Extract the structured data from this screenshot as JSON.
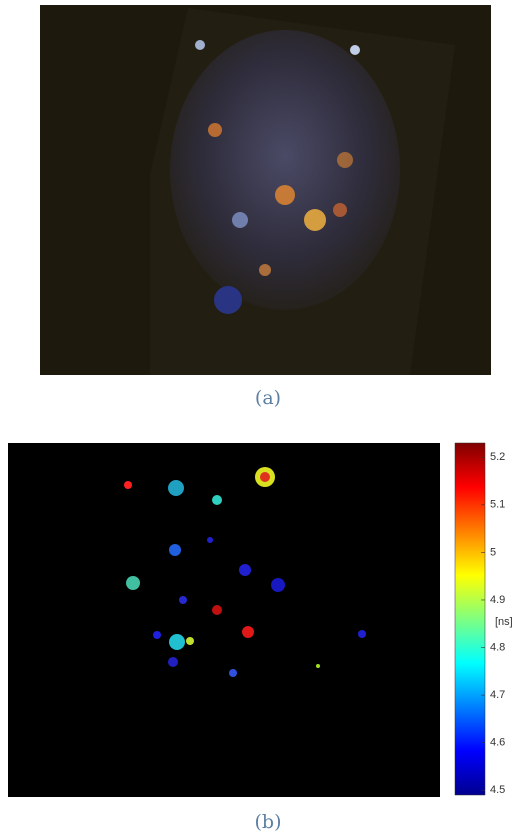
{
  "panels": [
    {
      "caption": "(a)"
    },
    {
      "caption": "(b)"
    }
  ],
  "colorbar": {
    "label": "[ns]",
    "lim": [
      4.49,
      5.23
    ],
    "ticks": [
      4.5,
      4.6,
      4.7,
      4.8,
      4.9,
      5,
      5.1,
      5.2
    ]
  }
}
